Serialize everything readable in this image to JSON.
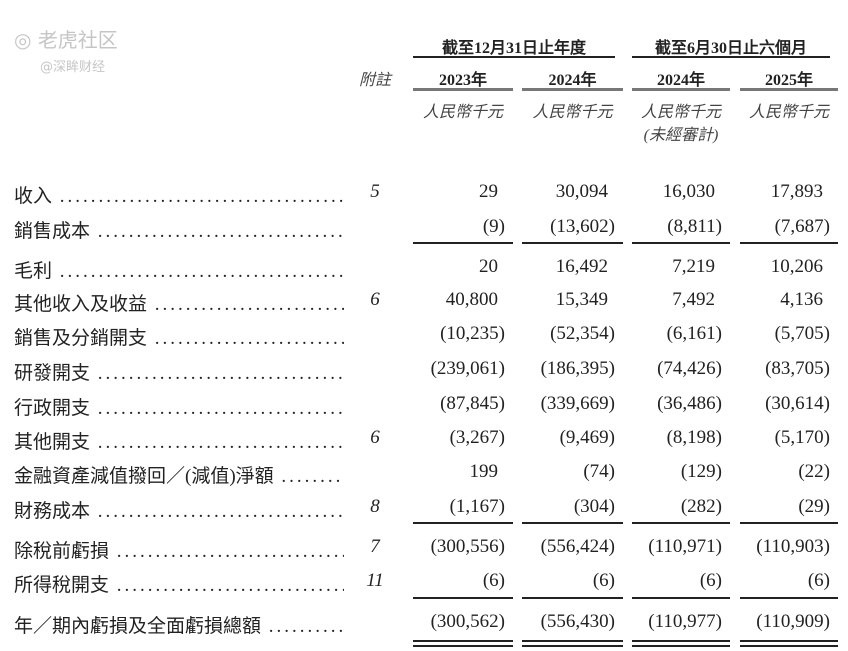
{
  "header": {
    "group_annual": "截至12月31日止年度",
    "group_interim": "截至6月30日止六個月",
    "note_label": "附註",
    "years": [
      "2023年",
      "2024年",
      "2024年",
      "2025年"
    ],
    "units": [
      "人民幣千元",
      "人民幣千元",
      "人民幣千元",
      "人民幣千元"
    ],
    "unaudited": "(未經審計)"
  },
  "rows": [
    {
      "label": "收入",
      "note": "5",
      "values": [
        "29",
        "30,094",
        "16,030",
        "17,893"
      ]
    },
    {
      "label": "銷售成本",
      "note": "",
      "values": [
        "(9)",
        "(13,602)",
        "(8,811)",
        "(7,687)"
      ]
    },
    {
      "label": "毛利",
      "note": "",
      "values": [
        "20",
        "16,492",
        "7,219",
        "10,206"
      ]
    },
    {
      "label": "其他收入及收益",
      "note": "6",
      "values": [
        "40,800",
        "15,349",
        "7,492",
        "4,136"
      ]
    },
    {
      "label": "銷售及分銷開支",
      "note": "",
      "values": [
        "(10,235)",
        "(52,354)",
        "(6,161)",
        "(5,705)"
      ]
    },
    {
      "label": "研發開支",
      "note": "",
      "values": [
        "(239,061)",
        "(186,395)",
        "(74,426)",
        "(83,705)"
      ]
    },
    {
      "label": "行政開支",
      "note": "",
      "values": [
        "(87,845)",
        "(339,669)",
        "(36,486)",
        "(30,614)"
      ]
    },
    {
      "label": "其他開支",
      "note": "6",
      "values": [
        "(3,267)",
        "(9,469)",
        "(8,198)",
        "(5,170)"
      ]
    },
    {
      "label": "金融資產減值撥回／(減值)淨額",
      "note": "",
      "values": [
        "199",
        "(74)",
        "(129)",
        "(22)"
      ]
    },
    {
      "label": "財務成本",
      "note": "8",
      "values": [
        "(1,167)",
        "(304)",
        "(282)",
        "(29)"
      ]
    },
    {
      "label": "除稅前虧損",
      "note": "7",
      "values": [
        "(300,556)",
        "(556,424)",
        "(110,971)",
        "(110,903)"
      ]
    },
    {
      "label": "所得稅開支",
      "note": "11",
      "values": [
        "(6)",
        "(6)",
        "(6)",
        "(6)"
      ]
    },
    {
      "label": "年／期內虧損及全面虧損總額",
      "note": "",
      "values": [
        "(300,562)",
        "(556,430)",
        "(110,977)",
        "(110,909)"
      ]
    }
  ],
  "watermark": {
    "brand": "老虎社区",
    "handle": "@深眸财经"
  }
}
